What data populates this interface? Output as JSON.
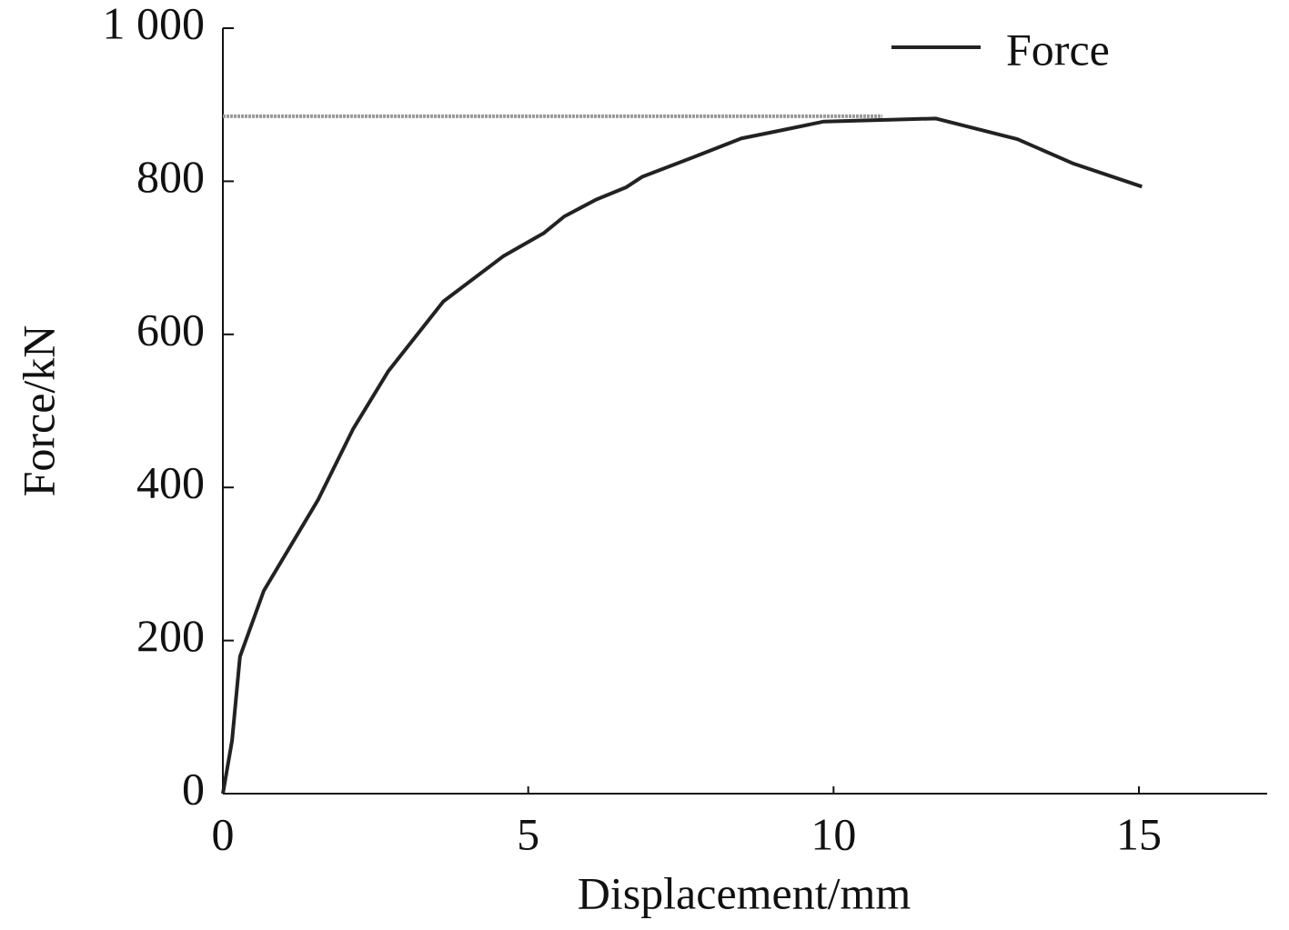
{
  "chart_data": {
    "type": "line",
    "x_label": "Displacement/mm",
    "y_label": "Force/kN",
    "x": [
      0,
      0.15,
      0.28,
      0.67,
      1.56,
      2.13,
      2.71,
      3.61,
      4.59,
      5.25,
      5.59,
      6.11,
      6.6,
      6.87,
      7.82,
      8.49,
      9.17,
      9.84,
      10.78,
      11.67,
      13.01,
      13.93,
      15.05
    ],
    "series": [
      {
        "name": "Force",
        "color": "#222222",
        "values": [
          0,
          69,
          179,
          265,
          384,
          476,
          552,
          643,
          702,
          732,
          754,
          776,
          792,
          806,
          835,
          856,
          867,
          878,
          880,
          882,
          855,
          823,
          793
        ]
      }
    ],
    "xlim": [
      0,
      17.1
    ],
    "ylim": [
      0,
      1000
    ],
    "xticks": [
      0,
      5,
      10,
      15
    ],
    "yticks": [
      0,
      200,
      400,
      600,
      800,
      {
        "value": 1000,
        "label": "1 000"
      }
    ],
    "reference_line": {
      "y": 885,
      "xmax": 10.8,
      "color": "#999999"
    },
    "legend": "top-right",
    "grid": false
  }
}
